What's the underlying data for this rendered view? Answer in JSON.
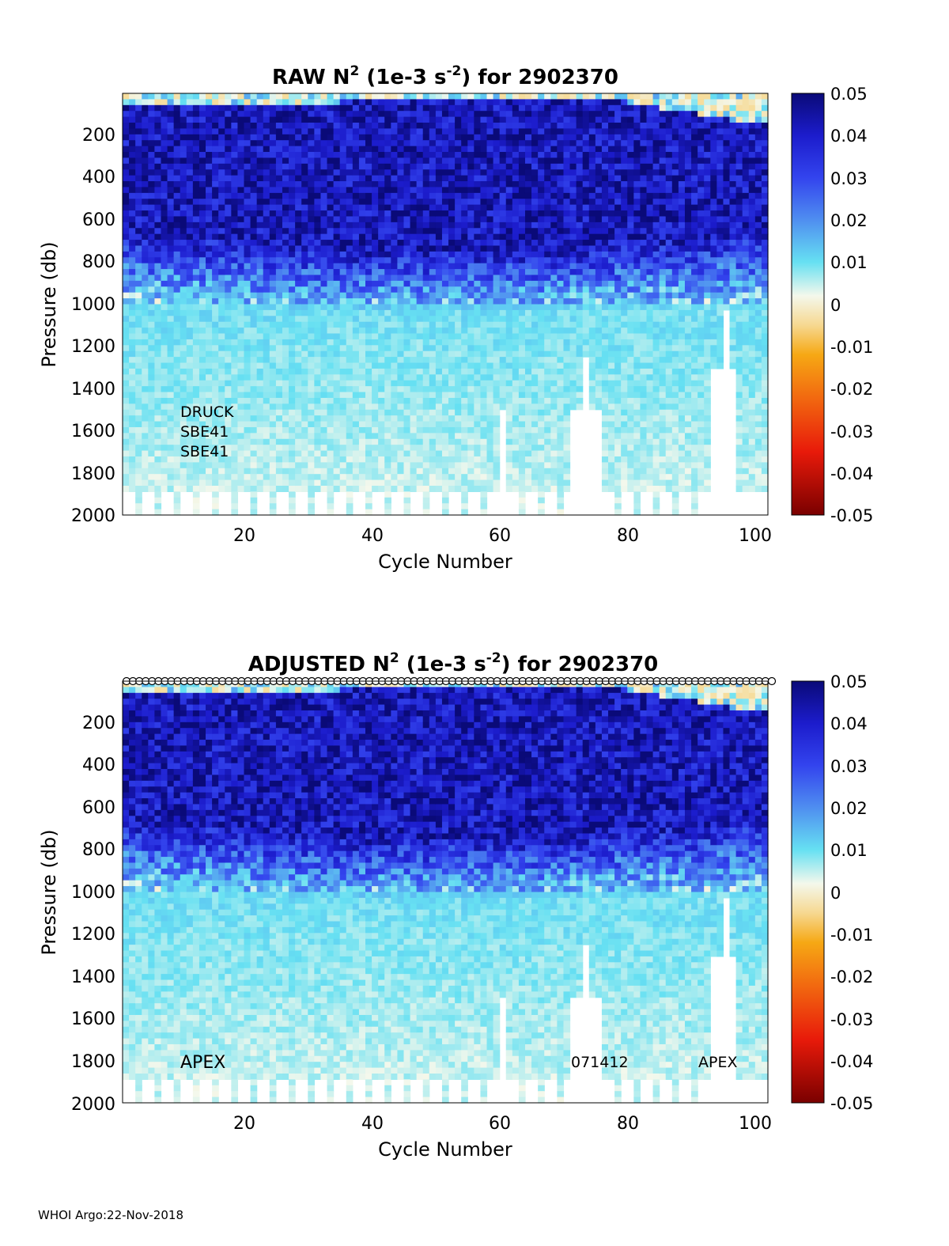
{
  "footer": "WHOI Argo:22-Nov-2018",
  "chart_data": [
    {
      "type": "heatmap",
      "title": {
        "main": "RAW N",
        "sup1": "2",
        "mid": " (1e-3 s",
        "sup2": "-2",
        "end": ") for 2902370"
      },
      "xlabel": "Cycle Number",
      "ylabel": "Pressure (db)",
      "xlim": [
        1,
        102
      ],
      "ylim": [
        2000,
        20
      ],
      "xticks": [
        "20",
        "40",
        "60",
        "80",
        "100"
      ],
      "yticks": [
        "200",
        "400",
        "600",
        "800",
        "1000",
        "1200",
        "1400",
        "1600",
        "1800",
        "2000"
      ],
      "colorbar": {
        "clim": [
          -0.05,
          0.05
        ],
        "ticks": [
          "0.05",
          "0.04",
          "0.03",
          "0.02",
          "0.01",
          "0",
          "-0.01",
          "-0.02",
          "-0.03",
          "-0.04",
          "-0.05"
        ]
      },
      "annotations": [
        "DRUCK",
        "SBE41",
        "SBE41"
      ],
      "profile_markers": false,
      "description": "N^2 mostly 0.03-0.05 from surface to ~700 db, decreasing to ~0.005 below 1000 db; gaps near cycles 60, 72-75, 93-96"
    },
    {
      "type": "heatmap",
      "title": {
        "main": "ADJUSTED N",
        "sup1": "2",
        "mid": " (1e-3 s",
        "sup2": "-2",
        "end": ") for 2902370"
      },
      "xlabel": "Cycle Number",
      "ylabel": "Pressure (db)",
      "xlim": [
        1,
        102
      ],
      "ylim": [
        2000,
        20
      ],
      "xticks": [
        "20",
        "40",
        "60",
        "80",
        "100"
      ],
      "yticks": [
        "200",
        "400",
        "600",
        "800",
        "1000",
        "1200",
        "1400",
        "1600",
        "1800",
        "2000"
      ],
      "colorbar": {
        "clim": [
          -0.05,
          0.05
        ],
        "ticks": [
          "0.05",
          "0.04",
          "0.03",
          "0.02",
          "0.01",
          "0",
          "-0.01",
          "-0.02",
          "-0.03",
          "-0.04",
          "-0.05"
        ]
      },
      "annotations": [
        "APEX",
        "071412",
        "APEX"
      ],
      "profile_markers": true,
      "description": "Adjusted field nearly identical to raw"
    }
  ]
}
